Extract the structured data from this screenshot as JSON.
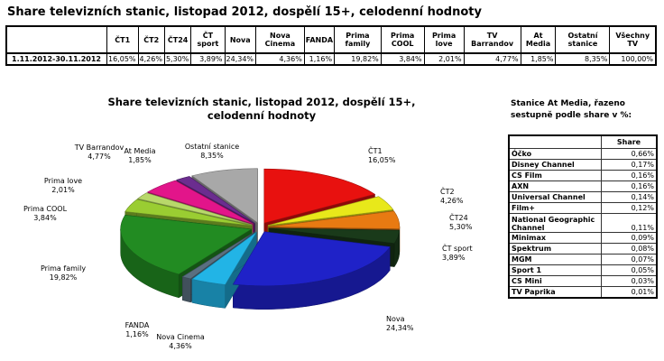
{
  "title": "Share televizních stanic, listopad 2012, dospělí 15+, celodenní hodnoty",
  "top_table": {
    "period": "1.11.2012-30.11.2012",
    "headers": [
      "ČT1",
      "ČT2",
      "ČT24",
      "ČT sport",
      "Nova",
      "Nova Cinema",
      "FANDA",
      "Prima family",
      "Prima COOL",
      "Prima love",
      "TV Barrandov",
      "At Media",
      "Ostatní stanice",
      "Všechny TV"
    ],
    "values": [
      "16,05%",
      "4,26%",
      "5,30%",
      "3,89%",
      "24,34%",
      "4,36%",
      "1,16%",
      "19,82%",
      "3,84%",
      "2,01%",
      "4,77%",
      "1,85%",
      "8,35%",
      "100,00%"
    ]
  },
  "chart_data": {
    "type": "pie",
    "title": "Share televizních stanic, listopad 2012, dospělí 15+, celodenní hodnoty",
    "slices": [
      {
        "name": "ČT1",
        "value": 16.05,
        "label": "16,05%",
        "color": "#e8110f"
      },
      {
        "name": "ČT2",
        "value": 4.26,
        "label": "4,26%",
        "color": "#e8e81a"
      },
      {
        "name": "ČT24",
        "value": 5.3,
        "label": "5,30%",
        "color": "#e87a12"
      },
      {
        "name": "ČT sport",
        "value": 3.89,
        "label": "3,89%",
        "color": "#1a3a1a"
      },
      {
        "name": "Nova",
        "value": 24.34,
        "label": "24,34%",
        "color": "#1f22c8"
      },
      {
        "name": "Nova Cinema",
        "value": 4.36,
        "label": "4,36%",
        "color": "#22b4e6"
      },
      {
        "name": "FANDA",
        "value": 1.16,
        "label": "1,16%",
        "color": "#5a6f80"
      },
      {
        "name": "Prima family",
        "value": 19.82,
        "label": "19,82%",
        "color": "#228b22"
      },
      {
        "name": "Prima COOL",
        "value": 3.84,
        "label": "3,84%",
        "color": "#9acd32"
      },
      {
        "name": "Prima love",
        "value": 2.01,
        "label": "2,01%",
        "color": "#b8d86a"
      },
      {
        "name": "TV Barrandov",
        "value": 4.77,
        "label": "4,77%",
        "color": "#e2158a"
      },
      {
        "name": "At Media",
        "value": 1.85,
        "label": "1,85%",
        "color": "#6b2d8f"
      },
      {
        "name": "Ostatní stanice",
        "value": 8.35,
        "label": "8,35%",
        "color": "#a8a8a8"
      }
    ]
  },
  "side": {
    "title": "Stanice At Media, řazeno sestupně podle share v %:",
    "header": "Share",
    "rows": [
      {
        "name": "Óčko",
        "value": "0,66%"
      },
      {
        "name": "Disney Channel",
        "value": "0,17%"
      },
      {
        "name": "CS Film",
        "value": "0,16%"
      },
      {
        "name": "AXN",
        "value": "0,16%"
      },
      {
        "name": "Universal Channel",
        "value": "0,14%"
      },
      {
        "name": "Film+",
        "value": "0,12%"
      },
      {
        "name": "National Geographic Channel",
        "value": "0,11%"
      },
      {
        "name": "Minimax",
        "value": "0,09%"
      },
      {
        "name": "Spektrum",
        "value": "0,08%"
      },
      {
        "name": "MGM",
        "value": "0,07%"
      },
      {
        "name": "Sport 1",
        "value": "0,05%"
      },
      {
        "name": "CS Mini",
        "value": "0,03%"
      },
      {
        "name": "TV Paprika",
        "value": "0,01%"
      }
    ]
  }
}
